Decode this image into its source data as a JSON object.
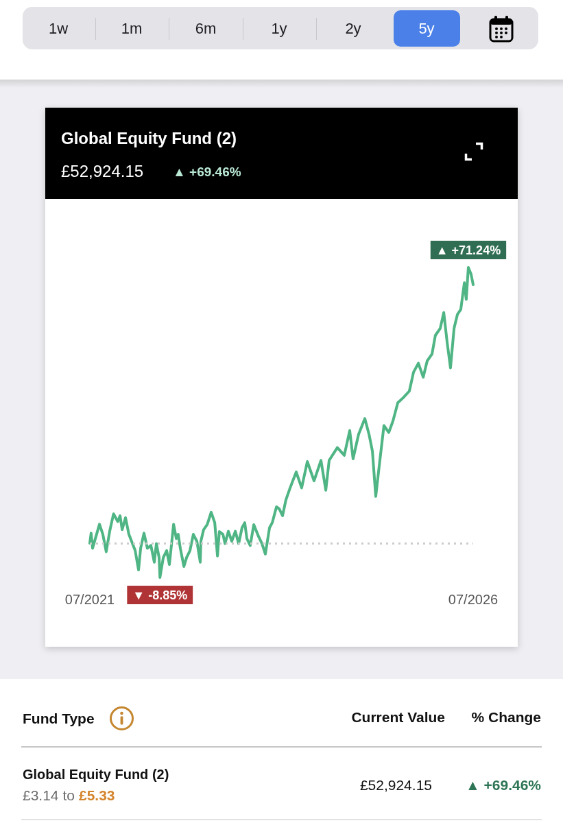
{
  "chart_data": {
    "type": "line",
    "title": "Global Equity Fund (2)",
    "subtitle": "£52,924.15",
    "annotations": [
      "1w",
      "1m",
      "6m",
      "1y",
      "2y",
      "5y",
      "▲ +69.46%",
      "Fund Type",
      "Current Value",
      "% Change",
      "Global Equity Fund (2)",
      "£3.14 to",
      "£5.33",
      "£52,924.15",
      "▲ +69.46%"
    ],
    "x": [
      "2021-07-01",
      "2021-07-07",
      "2021-07-14",
      "2021-08-16",
      "2021-09-01",
      "2021-09-17",
      "2021-10-04",
      "2021-10-22",
      "2021-11-11",
      "2021-11-22",
      "2021-12-02",
      "2021-12-18",
      "2022-01-03",
      "2022-01-16",
      "2022-02-02",
      "2022-02-18",
      "2022-02-28",
      "2022-03-16",
      "2022-04-01",
      "2022-04-18",
      "2022-05-04",
      "2022-05-14",
      "2022-05-27",
      "2022-05-31",
      "2022-06-16",
      "2022-07-02",
      "2022-07-15",
      "2022-08-04",
      "2022-08-17",
      "2022-08-26",
      "2022-09-05",
      "2022-09-22",
      "2022-10-05",
      "2022-10-21",
      "2022-11-06",
      "2022-11-23",
      "2022-12-09",
      "2022-12-12",
      "2022-12-25",
      "2023-01-11",
      "2023-01-30",
      "2023-02-16",
      "2023-03-01",
      "2023-03-10",
      "2023-03-27",
      "2023-04-06",
      "2023-04-22",
      "2023-05-08",
      "2023-05-25",
      "2023-06-10",
      "2023-06-26",
      "2023-07-09",
      "2023-07-19",
      "2023-08-04",
      "2023-08-21",
      "2023-09-13",
      "2023-09-29",
      "2023-10-15",
      "2023-11-04",
      "2023-11-17",
      "2023-12-07",
      "2023-12-20",
      "2024-01-05",
      "2024-01-21",
      "2024-02-10",
      "2024-03-10",
      "2024-04-05",
      "2024-05-02",
      "2024-06-03",
      "2024-07-06",
      "2024-07-29",
      "2024-08-14",
      "2024-09-22",
      "2024-10-25",
      "2024-11-20",
      "2024-12-06",
      "2025-01-01",
      "2025-01-31",
      "2025-02-20",
      "2025-03-08",
      "2025-03-24",
      "2025-04-10",
      "2025-05-02",
      "2025-05-25",
      "2025-06-14",
      "2025-07-07",
      "2025-08-02",
      "2025-08-31",
      "2025-09-20",
      "2025-10-13",
      "2025-11-05",
      "2025-11-24",
      "2025-12-17",
      "2026-01-02",
      "2026-01-25",
      "2026-02-11",
      "2026-02-27",
      "2026-03-15",
      "2026-04-01",
      "2026-04-17",
      "2026-05-03",
      "2026-05-20",
      "2026-05-29",
      "2026-06-08",
      "2026-06-21",
      "2026-07-01"
    ],
    "values": [
      0.0,
      2.6,
      -1.3,
      4.9,
      2.3,
      -2.2,
      3.2,
      7.6,
      5.6,
      7.1,
      3.5,
      6.6,
      2.3,
      0.5,
      -1.9,
      -6.9,
      -1.3,
      2.6,
      -1.3,
      -0.6,
      -4.9,
      -0.1,
      -3.7,
      -8.85,
      -3.7,
      -1.9,
      -5.5,
      4.9,
      1.2,
      2.3,
      -1.3,
      -6.0,
      -3.7,
      -1.9,
      2.3,
      0.5,
      -4.9,
      0.5,
      3.5,
      4.8,
      8.0,
      5.3,
      -3.3,
      3.0,
      2.3,
      -0.1,
      3.1,
      0.5,
      3.1,
      -0.1,
      4.0,
      5.3,
      1.2,
      -0.6,
      4.8,
      1.7,
      -0.1,
      -2.8,
      4.0,
      5.3,
      9.4,
      8.9,
      7.1,
      11.2,
      14.3,
      18.4,
      14.3,
      21.1,
      16.1,
      21.4,
      13.7,
      21.4,
      24.7,
      22.7,
      29.1,
      21.8,
      28.1,
      32.2,
      28.1,
      23.8,
      12.1,
      20.2,
      30.4,
      28.6,
      31.6,
      36.3,
      37.6,
      39.3,
      44.2,
      46.5,
      42.9,
      47.1,
      48.9,
      53.7,
      55.5,
      59.6,
      51.9,
      45.3,
      55.5,
      59.1,
      60.4,
      67.3,
      63.0,
      71.24,
      69.5,
      66.8
    ],
    "value_labels": [
      null,
      null,
      null,
      null,
      null,
      null,
      null,
      null,
      null,
      null,
      null,
      null,
      null,
      null,
      null,
      null,
      null,
      null,
      null,
      null,
      null,
      null,
      null,
      "▼ -8.85%",
      null,
      null,
      null,
      null,
      null,
      null,
      null,
      null,
      null,
      null,
      null,
      null,
      null,
      null,
      null,
      null,
      null,
      null,
      null,
      null,
      null,
      null,
      null,
      null,
      null,
      null,
      null,
      null,
      null,
      null,
      null,
      null,
      null,
      null,
      null,
      null,
      null,
      null,
      null,
      null,
      null,
      null,
      null,
      null,
      null,
      null,
      null,
      null,
      null,
      null,
      null,
      null,
      null,
      null,
      null,
      null,
      null,
      null,
      null,
      null,
      null,
      null,
      null,
      null,
      null,
      null,
      null,
      null,
      null,
      null,
      null,
      null,
      null,
      null,
      null,
      null,
      null,
      null,
      null,
      "▲ +71.24%",
      null,
      null
    ],
    "color": "#4fb584",
    "xlim": [
      "2021-07-01",
      "2026-07-01"
    ],
    "xticks": [
      {
        "value": "2021-07-01",
        "label": "07/2021"
      },
      {
        "value": "2026-07-01",
        "label": "07/2026"
      }
    ],
    "ref_lines": [
      {
        "axis": "y",
        "value": 0,
        "color": "#cccccc",
        "line_style": "dotted"
      }
    ],
    "tick_labels": "x",
    "marker": "none",
    "line_style": "solid"
  }
}
